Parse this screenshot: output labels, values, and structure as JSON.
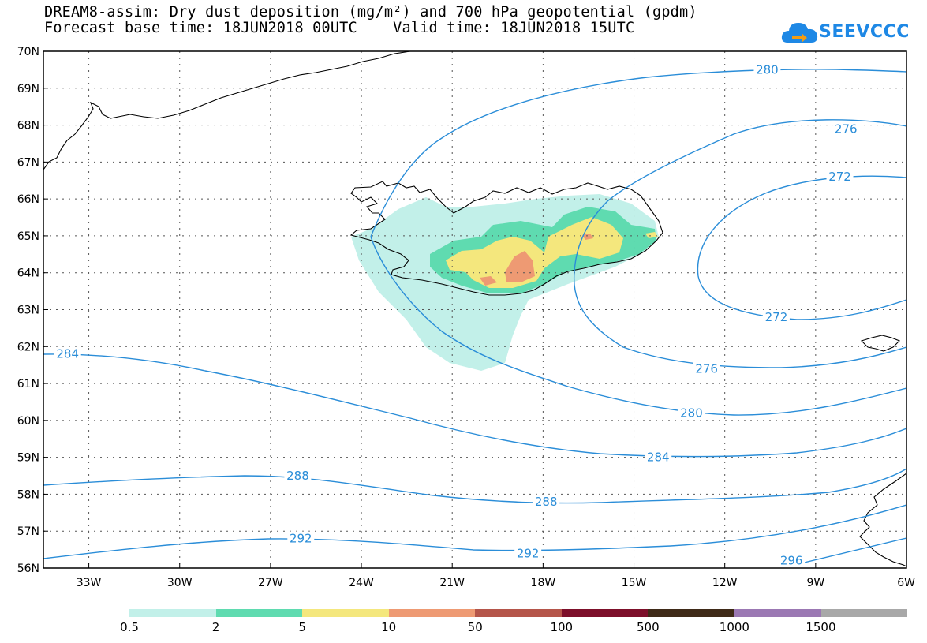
{
  "header": {
    "title_line1": "DREAM8-assim: Dry dust deposition (mg/m²) and 700 hPa geopotential (gpdm)",
    "title_line2": "Forecast base time: 18JUN2018 00UTC    Valid time: 18JUN2018 15UTC"
  },
  "logo": {
    "text": "SEEVCCC",
    "icon": "cloud-arrow-icon",
    "color": "#1e88e5"
  },
  "map": {
    "lon_range": [
      -34.5,
      -6
    ],
    "lat_range": [
      56,
      70
    ],
    "grid": true,
    "lat_labels": [
      "56N",
      "57N",
      "58N",
      "59N",
      "60N",
      "61N",
      "62N",
      "63N",
      "64N",
      "65N",
      "66N",
      "67N",
      "68N",
      "69N",
      "70N"
    ],
    "lon_labels": [
      "33W",
      "30W",
      "27W",
      "24W",
      "21W",
      "18W",
      "15W",
      "12W",
      "9W",
      "6W"
    ],
    "contour_color": "#2a8dd8",
    "contour_labels": [
      {
        "value": "280",
        "lon": -10.6,
        "lat": 69.5
      },
      {
        "value": "276",
        "lon": -8.0,
        "lat": 67.9
      },
      {
        "value": "272",
        "lon": -8.2,
        "lat": 66.6
      },
      {
        "value": "272",
        "lon": -10.3,
        "lat": 62.8
      },
      {
        "value": "276",
        "lon": -12.6,
        "lat": 61.4
      },
      {
        "value": "280",
        "lon": -13.1,
        "lat": 60.2
      },
      {
        "value": "284",
        "lon": -33.7,
        "lat": 61.8
      },
      {
        "value": "284",
        "lon": -14.2,
        "lat": 59.0
      },
      {
        "value": "288",
        "lon": -26.1,
        "lat": 58.5
      },
      {
        "value": "288",
        "lon": -17.9,
        "lat": 57.8
      },
      {
        "value": "292",
        "lon": -26.0,
        "lat": 56.8
      },
      {
        "value": "292",
        "lon": -18.5,
        "lat": 56.4
      },
      {
        "value": "296",
        "lon": -9.8,
        "lat": 56.2
      }
    ]
  },
  "legend": {
    "colors": [
      "#c2f0e9",
      "#5fdbb0",
      "#f4e77d",
      "#ee9a73",
      "#b5554a",
      "#7d0f2a",
      "#3f2a18",
      "#9b78b3",
      "#a8a8a8"
    ],
    "labels": [
      "0.5",
      "2",
      "5",
      "10",
      "50",
      "100",
      "500",
      "1000",
      "1500"
    ]
  }
}
